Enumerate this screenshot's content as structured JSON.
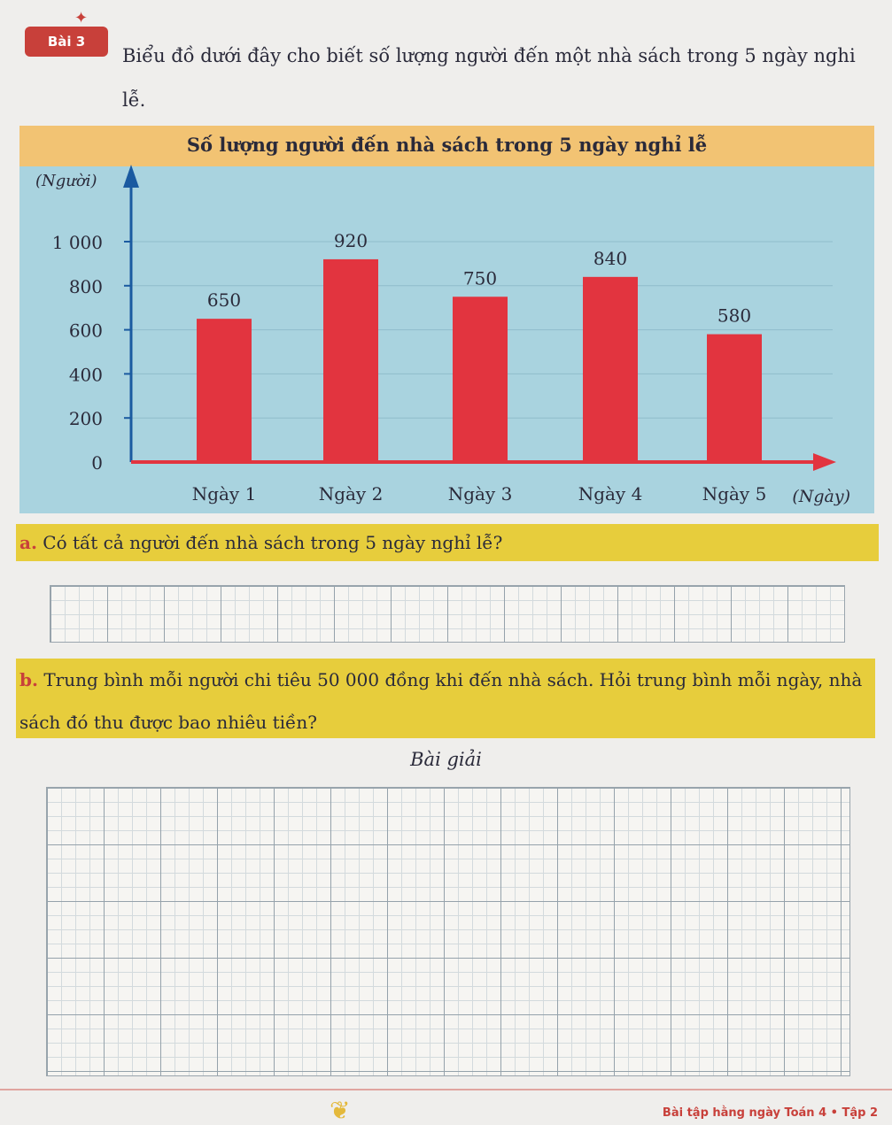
{
  "exercise": {
    "badge": "Bài 3",
    "text": "Biểu đồ dưới đây cho biết số lượng người đến một nhà sách trong 5 ngày nghi lễ."
  },
  "chart_data": {
    "type": "bar",
    "title": "Số lượng người đến nhà sách trong 5 ngày nghỉ lễ",
    "ylabel": "(Người)",
    "xlabel": "(Ngày)",
    "categories": [
      "Ngày 1",
      "Ngày 2",
      "Ngày 3",
      "Ngày 4",
      "Ngày 5"
    ],
    "values": [
      650,
      920,
      750,
      840,
      580
    ],
    "data_labels": [
      "650",
      "920",
      "750",
      "840",
      "580"
    ],
    "yticks": [
      0,
      200,
      400,
      600,
      800,
      1000
    ],
    "ytick_labels": [
      "0",
      "200",
      "400",
      "600",
      "800",
      "1 000"
    ],
    "ylim": [
      0,
      1000
    ],
    "grid": true,
    "colors": {
      "bar": "#e2343f",
      "panel": "#a9d3df",
      "title_band": "#f2c373",
      "axis": "#1a5aa0",
      "x_arrow": "#e2343f"
    }
  },
  "question_a": {
    "letter": "a.",
    "text": "Có tất cả người đến nhà sách trong 5 ngày nghỉ lễ?"
  },
  "question_b": {
    "letter": "b.",
    "text": "Trung bình mỗi người chi tiêu 50 000 đồng khi đến nhà sách. Hỏi trung bình mỗi ngày, nhà sách đó thu được bao nhiêu tiền?"
  },
  "solution_heading": "Bài giải",
  "footer": {
    "text": "Bài tập hằng ngày Toán 4 • Tập 2"
  }
}
